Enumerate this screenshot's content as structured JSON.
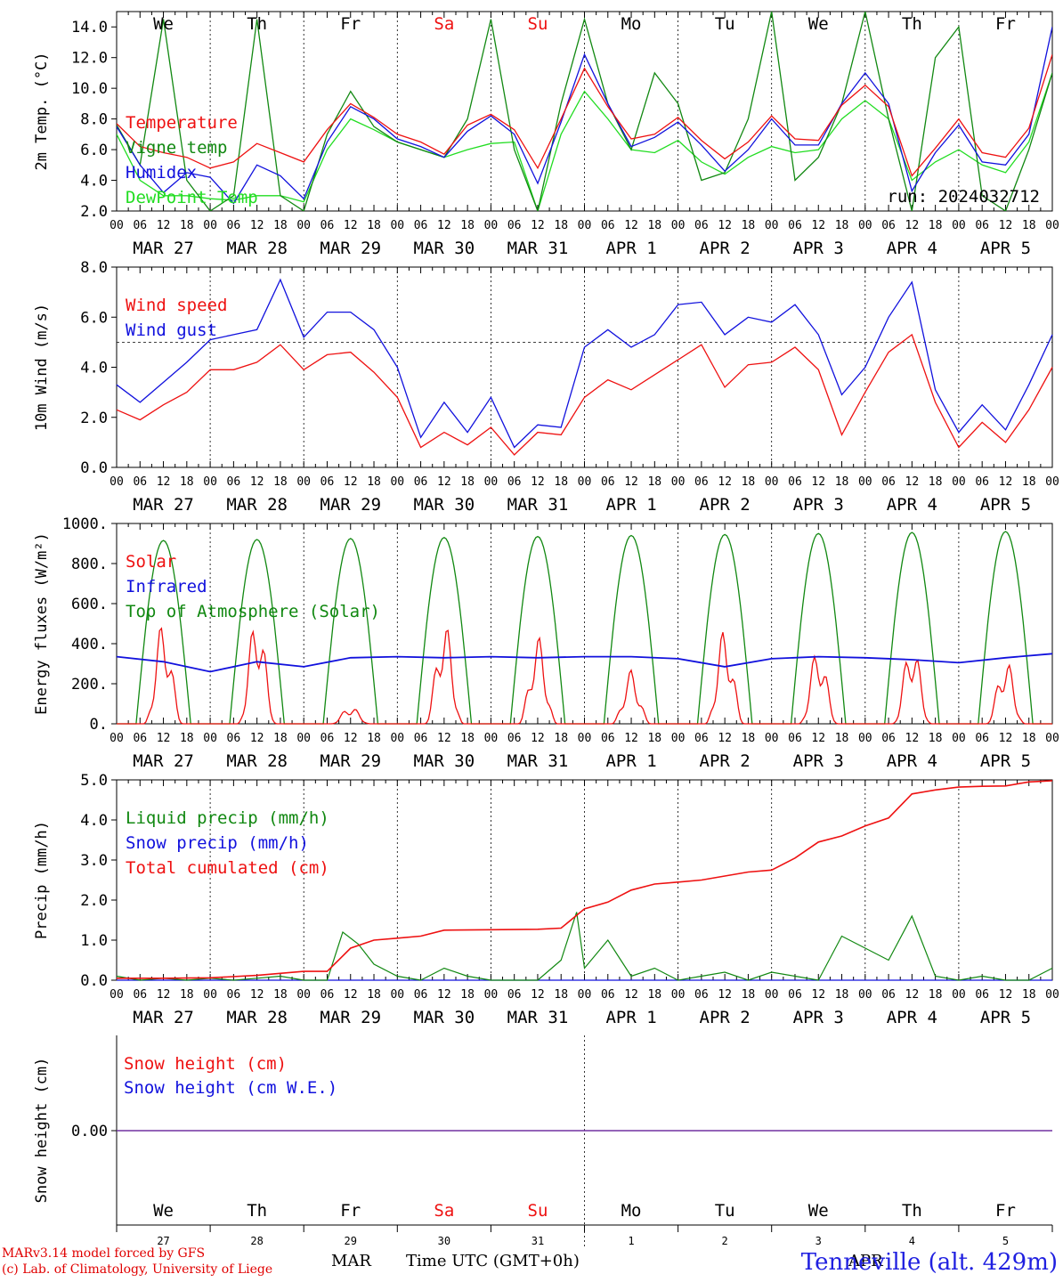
{
  "colors": {
    "red": "#ee1111",
    "green": "#118811",
    "blue": "#1111dd",
    "lightgreen": "#22dd22",
    "snow_line": "#7030a0"
  },
  "axis": {
    "hour_ticks": [
      "00",
      "06",
      "12",
      "18"
    ],
    "last_tick": "00",
    "dates": [
      "MAR 27",
      "MAR 28",
      "MAR 29",
      "MAR 30",
      "MAR 31",
      "APR  1",
      "APR  2",
      "APR  3",
      "APR  4",
      "APR  5"
    ],
    "days": [
      "We",
      "Th",
      "Fr",
      "Sa",
      "Su",
      "Mo",
      "Tu",
      "We",
      "Th",
      "Fr"
    ],
    "weekend_days": [
      3,
      4
    ],
    "day_numbers": [
      "27",
      "28",
      "29",
      "30",
      "31",
      "1",
      "2",
      "3",
      "4",
      "5"
    ]
  },
  "footer": {
    "credit_line1": "MARv3.14 model forced by GFS",
    "credit_line2": "(c) Lab. of Climatology, University of Liege",
    "month_left": "MAR",
    "month_right": "APR",
    "xlabel": "Time UTC (GMT+0h)",
    "station": "Tenneville (alt. 429m)"
  },
  "chart_data": [
    {
      "type": "line",
      "ylabel": "2m Temp. (°C)",
      "ylim": [
        2,
        15
      ],
      "yticks": [
        "2.0",
        "4.0",
        "6.0",
        "8.0",
        "10.0",
        "12.0",
        "14.0"
      ],
      "ytick_values": [
        2,
        4,
        6,
        8,
        10,
        12,
        14
      ],
      "annotation": "run: 2024032712",
      "x_hours": [
        0,
        6,
        12,
        18,
        24,
        30,
        36,
        42,
        48,
        54,
        60,
        66,
        72,
        78,
        84,
        90,
        96,
        102,
        108,
        114,
        120,
        126,
        132,
        138,
        144,
        150,
        156,
        162,
        168,
        174,
        180,
        186,
        192,
        198,
        204,
        210,
        216,
        222,
        228,
        234,
        240
      ],
      "series": [
        {
          "name": "Temperature",
          "color": "red",
          "values": [
            7.7,
            6.2,
            5.8,
            5.5,
            4.8,
            5.2,
            6.4,
            5.8,
            5.2,
            7.3,
            9.0,
            8.1,
            7.0,
            6.5,
            5.7,
            7.6,
            8.3,
            7.3,
            4.8,
            8.0,
            11.3,
            8.8,
            6.7,
            7.0,
            8.1,
            6.6,
            5.4,
            6.5,
            8.2,
            6.7,
            6.6,
            8.9,
            10.2,
            8.8,
            4.3,
            6.1,
            8.0,
            5.8,
            5.5,
            7.4,
            12.2
          ]
        },
        {
          "name": "Vigne temp",
          "color": "green",
          "values": [
            7.6,
            5.0,
            14.5,
            4.0,
            2.0,
            3.0,
            14.5,
            3.0,
            2.0,
            7.0,
            9.8,
            7.5,
            6.5,
            6.0,
            5.5,
            8.0,
            14.5,
            6.0,
            2.0,
            9.0,
            14.5,
            9.0,
            6.0,
            11.0,
            9.0,
            4.0,
            4.5,
            8.0,
            15.0,
            4.0,
            5.5,
            9.0,
            15.0,
            8.0,
            2.0,
            12.0,
            14.0,
            3.0,
            2.0,
            6.0,
            11.0
          ]
        },
        {
          "name": "Humidex",
          "color": "blue",
          "values": [
            7.5,
            5.0,
            3.2,
            4.5,
            4.2,
            2.5,
            5.0,
            4.3,
            2.8,
            6.5,
            8.8,
            8.0,
            6.7,
            6.2,
            5.5,
            7.2,
            8.2,
            7.0,
            3.8,
            7.8,
            12.2,
            9.0,
            6.2,
            6.8,
            7.8,
            6.3,
            4.6,
            6.0,
            8.0,
            6.3,
            6.3,
            9.0,
            11.0,
            9.0,
            3.3,
            5.8,
            7.6,
            5.2,
            5.0,
            7.0,
            14.0
          ]
        },
        {
          "name": "DewPoint Temp",
          "color": "lightgreen",
          "values": [
            7.0,
            4.0,
            3.0,
            3.0,
            2.8,
            2.7,
            3.0,
            3.0,
            2.6,
            6.0,
            8.0,
            7.3,
            6.5,
            6.0,
            5.5,
            6.0,
            6.4,
            6.5,
            2.0,
            7.0,
            9.8,
            8.0,
            6.0,
            5.8,
            6.6,
            5.2,
            4.4,
            5.5,
            6.2,
            5.8,
            6.0,
            8.0,
            9.2,
            8.0,
            4.0,
            5.2,
            6.0,
            5.0,
            4.5,
            6.5,
            11.0
          ]
        }
      ]
    },
    {
      "type": "line",
      "ylabel": "10m Wind (m/s)",
      "ylim": [
        0,
        8
      ],
      "yticks": [
        "0.0",
        "2.0",
        "4.0",
        "6.0",
        "8.0"
      ],
      "ytick_values": [
        0,
        2,
        4,
        6,
        8
      ],
      "reference_line": 5,
      "x_hours": [
        0,
        6,
        12,
        18,
        24,
        30,
        36,
        42,
        48,
        54,
        60,
        66,
        72,
        78,
        84,
        90,
        96,
        102,
        108,
        114,
        120,
        126,
        132,
        138,
        144,
        150,
        156,
        162,
        168,
        174,
        180,
        186,
        192,
        198,
        204,
        210,
        216,
        222,
        228,
        234,
        240
      ],
      "series": [
        {
          "name": "Wind speed",
          "color": "red",
          "values": [
            2.3,
            1.9,
            2.5,
            3.0,
            3.9,
            3.9,
            4.2,
            4.9,
            3.9,
            4.5,
            4.6,
            3.8,
            2.8,
            0.8,
            1.4,
            0.9,
            1.6,
            0.5,
            1.4,
            1.3,
            2.8,
            3.5,
            3.1,
            3.7,
            4.3,
            4.9,
            3.2,
            4.1,
            4.2,
            4.8,
            3.9,
            1.3,
            3.0,
            4.6,
            5.3,
            2.6,
            0.8,
            1.8,
            1.0,
            2.3,
            4.0
          ]
        },
        {
          "name": "Wind gust",
          "color": "blue",
          "values": [
            3.3,
            2.6,
            3.4,
            4.2,
            5.1,
            5.3,
            5.5,
            7.5,
            5.2,
            6.2,
            6.2,
            5.5,
            4.0,
            1.2,
            2.6,
            1.4,
            2.8,
            0.8,
            1.7,
            1.6,
            4.8,
            5.5,
            4.8,
            5.3,
            6.5,
            6.6,
            5.3,
            6.0,
            5.8,
            6.5,
            5.3,
            2.9,
            4.0,
            6.0,
            7.4,
            3.1,
            1.4,
            2.5,
            1.5,
            3.3,
            5.3
          ]
        }
      ]
    },
    {
      "type": "line",
      "ylabel": "Energy fluxes (W/m²)",
      "ylim": [
        0,
        1000
      ],
      "yticks": [
        "0.",
        "200.",
        "400.",
        "600.",
        "800.",
        "1000."
      ],
      "ytick_values": [
        0,
        200,
        400,
        600,
        800,
        1000
      ],
      "series": [
        {
          "name": "Solar",
          "color": "red",
          "day_peaks": [
            520,
            560,
            90,
            520,
            440,
            270,
            480,
            390,
            420,
            330
          ]
        },
        {
          "name": "Infrared",
          "color": "blue",
          "x_hours": [
            0,
            12,
            24,
            36,
            48,
            60,
            72,
            84,
            96,
            108,
            120,
            132,
            144,
            156,
            168,
            180,
            192,
            204,
            216,
            228,
            240
          ],
          "values": [
            335,
            310,
            260,
            310,
            285,
            330,
            335,
            330,
            335,
            330,
            335,
            335,
            325,
            285,
            325,
            335,
            330,
            320,
            305,
            330,
            350
          ]
        },
        {
          "name": "Top of Atmosphere (Solar)",
          "color": "green",
          "day_peaks": [
            915,
            920,
            925,
            930,
            935,
            940,
            945,
            950,
            955,
            960
          ]
        }
      ]
    },
    {
      "type": "line",
      "ylabel": "Precip (mm/h)",
      "ylim": [
        0,
        5
      ],
      "yticks": [
        "0.0",
        "1.0",
        "2.0",
        "3.0",
        "4.0",
        "5.0"
      ],
      "ytick_values": [
        0,
        1,
        2,
        3,
        4,
        5
      ],
      "series": [
        {
          "name": "Liquid precip (mm/h)",
          "color": "green",
          "x_hours": [
            0,
            6,
            12,
            18,
            24,
            30,
            36,
            42,
            48,
            54,
            58,
            62,
            66,
            72,
            78,
            84,
            90,
            96,
            102,
            108,
            114,
            118,
            120,
            126,
            132,
            138,
            144,
            150,
            156,
            162,
            168,
            174,
            180,
            186,
            192,
            198,
            204,
            210,
            216,
            222,
            228,
            234,
            240
          ],
          "values": [
            0.1,
            0,
            0.05,
            0,
            0.05,
            0,
            0.05,
            0.1,
            0,
            0,
            1.2,
            0.9,
            0.4,
            0.1,
            0,
            0.3,
            0.1,
            0,
            0,
            0,
            0.5,
            1.7,
            0.3,
            1.0,
            0.1,
            0.3,
            0,
            0.1,
            0.2,
            0,
            0.2,
            0.1,
            0,
            1.1,
            0.8,
            0.5,
            1.6,
            0.1,
            0,
            0.1,
            0,
            0,
            0.3
          ]
        },
        {
          "name": "Snow precip (mm/h)",
          "color": "blue",
          "x_hours": [
            0,
            240
          ],
          "values": [
            0,
            0
          ]
        },
        {
          "name": "Total cumulated (cm)",
          "color": "red",
          "x_hours": [
            0,
            12,
            24,
            36,
            48,
            54,
            60,
            66,
            72,
            78,
            84,
            96,
            108,
            114,
            120,
            126,
            132,
            138,
            144,
            150,
            156,
            162,
            168,
            174,
            180,
            186,
            192,
            198,
            204,
            210,
            216,
            222,
            228,
            234,
            240
          ],
          "values": [
            0.05,
            0.05,
            0.06,
            0.12,
            0.22,
            0.22,
            0.8,
            1.0,
            1.05,
            1.1,
            1.25,
            1.26,
            1.27,
            1.3,
            1.78,
            1.95,
            2.25,
            2.4,
            2.45,
            2.5,
            2.6,
            2.7,
            2.75,
            3.05,
            3.45,
            3.6,
            3.85,
            4.05,
            4.65,
            4.75,
            4.82,
            4.84,
            4.85,
            4.95,
            4.98
          ]
        }
      ]
    },
    {
      "type": "line",
      "ylabel": "Snow height (cm)",
      "yticks": [
        "0.00"
      ],
      "series": [
        {
          "name": "Snow height (cm)",
          "color": "red",
          "values": [
            0,
            0
          ]
        },
        {
          "name": "Snow height (cm W.E.)",
          "color": "blue",
          "values": [
            0,
            0
          ]
        }
      ]
    }
  ]
}
